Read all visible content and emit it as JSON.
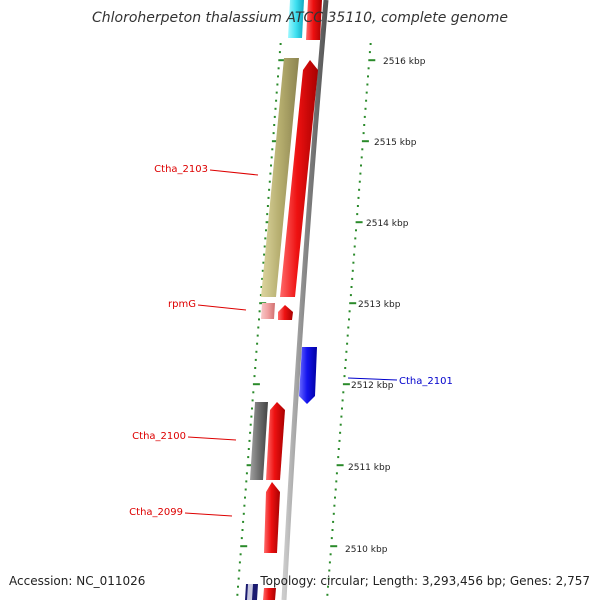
{
  "title": "Chloroherpeton thalassium ATCC 35110, complete genome",
  "footer": {
    "accession": "Accession: NC_011026",
    "stats": "Topology: circular; Length: 3,293,456 bp; Genes: 2,757"
  },
  "colors": {
    "background": "#ffffff",
    "backbone": "#888888",
    "forward_cds": "#ee1111",
    "reverse_cds": "#1111ee",
    "khaki_feature": "#b5ad6e",
    "gray_feature": "#6e6e6e",
    "light_red_feature": "#f0a0a0",
    "cyan_feature": "#3fe0f0",
    "ticks": "#2a8a2a",
    "label_red": "#dd0000",
    "label_blue": "#0000cc",
    "title_text": "#333333"
  },
  "scale": {
    "unit": "kbp",
    "labels": [
      "2516 kbp",
      "2515 kbp",
      "2514 kbp",
      "2513 kbp",
      "2512 kbp",
      "2511 kbp",
      "2510 kbp"
    ]
  },
  "gene_labels": [
    {
      "text": "Ctha_2103",
      "strand": "forward",
      "color": "#dd0000"
    },
    {
      "text": "rpmG",
      "strand": "forward",
      "color": "#dd0000"
    },
    {
      "text": "Ctha_2101",
      "strand": "reverse",
      "color": "#0000cc"
    },
    {
      "text": "Ctha_2100",
      "strand": "forward",
      "color": "#dd0000"
    },
    {
      "text": "Ctha_2099",
      "strand": "forward",
      "color": "#dd0000"
    }
  ],
  "features": [
    {
      "name": "cyan-feature-top",
      "color": "cyan_feature"
    },
    {
      "name": "red-cds-top",
      "color": "forward_cds"
    },
    {
      "name": "khaki-feature-ctha-2103",
      "color": "khaki_feature"
    },
    {
      "name": "red-cds-ctha-2103",
      "color": "forward_cds"
    },
    {
      "name": "light-red-feature-rpmg",
      "color": "light_red_feature"
    },
    {
      "name": "red-cds-rpmg",
      "color": "forward_cds"
    },
    {
      "name": "blue-cds-ctha-2101",
      "color": "reverse_cds"
    },
    {
      "name": "gray-feature-ctha-2100",
      "color": "gray_feature"
    },
    {
      "name": "red-cds-ctha-2100",
      "color": "forward_cds"
    },
    {
      "name": "red-cds-ctha-2099",
      "color": "forward_cds"
    },
    {
      "name": "navy-feature-bottom",
      "color": "reverse_cds"
    },
    {
      "name": "red-cds-bottom",
      "color": "forward_cds"
    }
  ]
}
